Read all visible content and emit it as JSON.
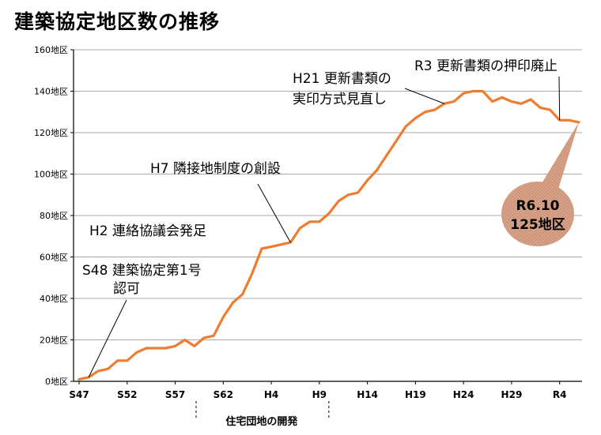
{
  "page": {
    "title": "建築協定地区数の推移"
  },
  "chart_data": {
    "type": "line",
    "title": "建築協定地区数の推移",
    "ylim": [
      0,
      160
    ],
    "y_ticks": [
      "0地区",
      "20地区",
      "40地区",
      "60地区",
      "80地区",
      "100地区",
      "120地区",
      "140地区",
      "160地区"
    ],
    "x_ticks": [
      "S47",
      "S52",
      "S57",
      "S62",
      "H4",
      "H9",
      "H14",
      "H19",
      "H24",
      "H29",
      "R4"
    ],
    "xlim": [
      0,
      52
    ],
    "grid": true,
    "series": [
      {
        "color": "#ed7d31",
        "x": [
          0,
          1,
          2,
          3,
          4,
          5,
          6,
          7,
          8,
          9,
          10,
          11,
          12,
          13,
          14,
          15,
          16,
          17,
          18,
          19,
          20,
          21,
          22,
          23,
          24,
          25,
          26,
          27,
          28,
          29,
          30,
          31,
          32,
          33,
          34,
          35,
          36,
          37,
          38,
          39,
          40,
          41,
          42,
          43,
          44,
          45,
          46,
          47,
          48,
          49,
          50,
          51,
          52
        ],
        "values": [
          1,
          2,
          5,
          6,
          10,
          10,
          14,
          16,
          16,
          16,
          17,
          20,
          17,
          21,
          22,
          31,
          38,
          42,
          52,
          64,
          65,
          66,
          67,
          74,
          77,
          77,
          81,
          87,
          90,
          91,
          97,
          102,
          109,
          116,
          123,
          127,
          130,
          131,
          134,
          135,
          139,
          140,
          140,
          135,
          137,
          135,
          134,
          136,
          132,
          131,
          126,
          126,
          125
        ]
      }
    ],
    "annotations": [
      {
        "id": "s48",
        "lines": [
          "S48 建築協定第1号",
          "認可"
        ]
      },
      {
        "id": "h2",
        "lines": [
          "H2 連絡協議会発足"
        ]
      },
      {
        "id": "h7",
        "lines": [
          "H7 隣接地制度の創設"
        ]
      },
      {
        "id": "h21",
        "lines": [
          "H21 更新書類の",
          "実印方式見直し"
        ]
      },
      {
        "id": "r3",
        "lines": [
          "R3 更新書類の押印廃止"
        ]
      }
    ],
    "badge": {
      "lines": [
        "R6.10",
        "125地区"
      ],
      "color": "#d9a88f"
    },
    "sub_label": "住宅団地の開発"
  }
}
